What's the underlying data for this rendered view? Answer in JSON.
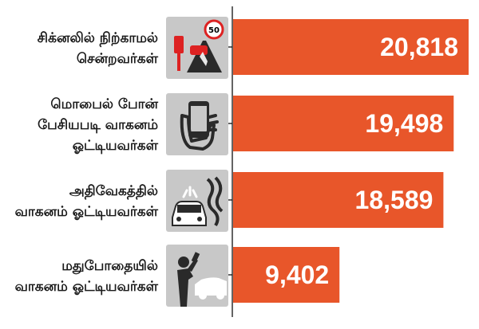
{
  "chart_data": {
    "type": "bar",
    "orientation": "horizontal",
    "categories": [
      [
        "சிக்னலில் நிற்காமல்",
        "சென்றவர்கள்"
      ],
      [
        "மொபைல் போன்",
        "பேசியபடி வாகனம்",
        "ஓட்டியவர்கள்"
      ],
      [
        "அதிவேகத்தில்",
        "வாகனம் ஓட்டியவர்கள்"
      ],
      [
        "மதுபோதையில்",
        "வாகனம் ஓட்டியவர்கள்"
      ]
    ],
    "values": [
      20818,
      19498,
      18589,
      9402
    ],
    "value_labels": [
      "20,818",
      "19,498",
      "18,589",
      "9,402"
    ],
    "icons": [
      "speed-limit-50-icon",
      "mobile-phone-in-hand-icon",
      "skidding-car-icon",
      "drunk-driver-car-icon"
    ],
    "bar_color": "#e8562a",
    "icon_bg_color": "#c8c8c8",
    "inside_label_color": "#ffffff",
    "outside_label_color": "#1a1a1a",
    "xlim": [
      0,
      22000
    ],
    "grid": false
  }
}
